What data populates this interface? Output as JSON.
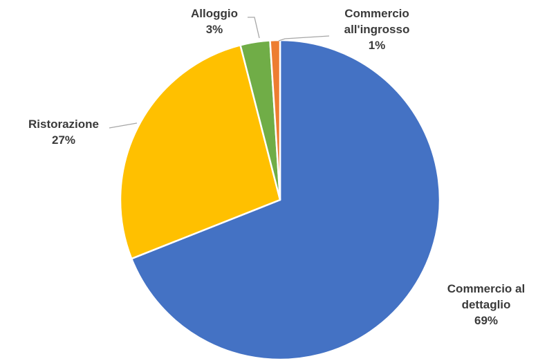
{
  "chart_data": {
    "type": "pie",
    "title": "",
    "legend": "none",
    "slices": [
      {
        "label": "Commercio al dettaglio",
        "label_lines": [
          "Commercio al",
          "dettaglio"
        ],
        "value": 69,
        "value_label": "69%",
        "color": "#4472C4"
      },
      {
        "label": "Ristorazione",
        "label_lines": [
          "Ristorazione"
        ],
        "value": 27,
        "value_label": "27%",
        "color": "#FFC000"
      },
      {
        "label": "Alloggio",
        "label_lines": [
          "Alloggio"
        ],
        "value": 3,
        "value_label": "3%",
        "color": "#70AD47"
      },
      {
        "label": "Commercio all'ingrosso",
        "label_lines": [
          "Commercio",
          "all'ingrosso"
        ],
        "value": 1,
        "value_label": "1%",
        "color": "#ED7D31"
      }
    ]
  }
}
